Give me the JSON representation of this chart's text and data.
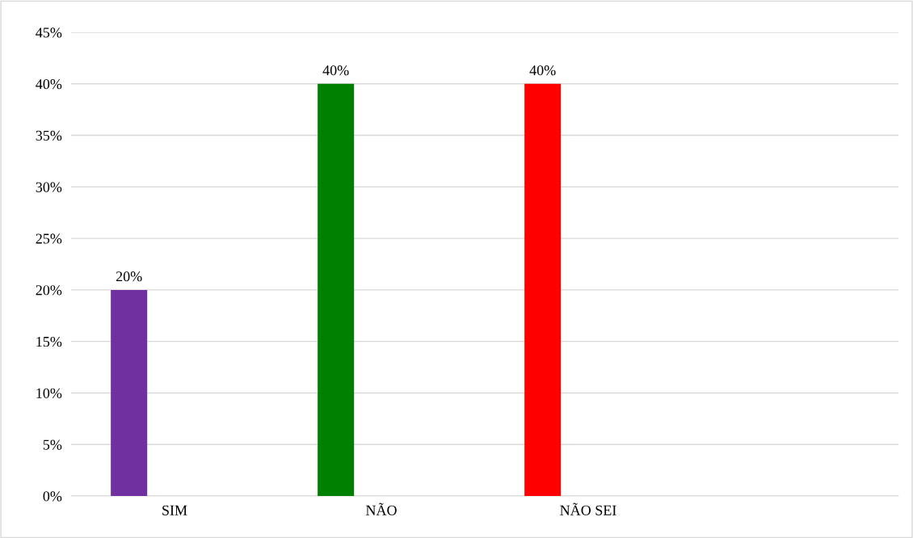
{
  "chart_data": {
    "type": "bar",
    "categories": [
      "SIM",
      "NÃO",
      "NÃO SEI",
      null
    ],
    "values": [
      20,
      40,
      40,
      null
    ],
    "colors": [
      "#7030a0",
      "#008000",
      "#ff0000",
      "#808080"
    ],
    "value_labels": [
      "20%",
      "40%",
      "40%",
      null
    ],
    "ylim": [
      0,
      45
    ],
    "yticks": [
      {
        "value": 0,
        "label": "0%"
      },
      {
        "value": 5,
        "label": "5%"
      },
      {
        "value": 10,
        "label": "10%"
      },
      {
        "value": 15,
        "label": "15%"
      },
      {
        "value": 20,
        "label": "20%"
      },
      {
        "value": 25,
        "label": "25%"
      },
      {
        "value": 30,
        "label": "30%"
      },
      {
        "value": 35,
        "label": "35%"
      },
      {
        "value": 40,
        "label": "40%"
      },
      {
        "value": 45,
        "label": "45%"
      }
    ],
    "grid": "y",
    "legend": false
  }
}
